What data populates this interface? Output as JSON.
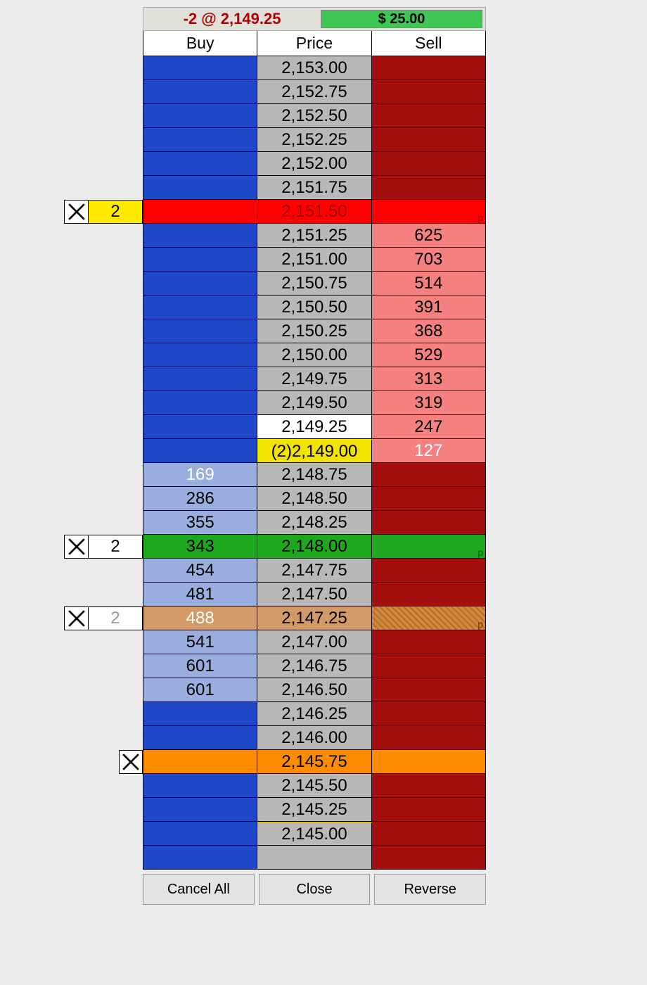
{
  "status": {
    "position_text": "-2 @ 2,149.25",
    "position_color": "#b00000",
    "pnl_text": "$ 25.00",
    "pnl_bg": "#3ec853",
    "pnl_color": "#000000"
  },
  "headers": {
    "buy": "Buy",
    "price": "Price",
    "sell": "Sell"
  },
  "palette": {
    "buy_blank": "#1f48c9",
    "buy_depth": "#99addf",
    "sell_blank": "#a30f0f",
    "sell_depth": "#f58080",
    "sell_depth_text": "#000000",
    "buy_depth_text": "#000000",
    "buy_depth_text_white": "#ffffff",
    "price_bg": "#b8b8b8",
    "price_text": "#000000",
    "stop_red": "#ff0000",
    "target_green": "#1fa71f",
    "pending_tan_buy": "#d19a66",
    "pending_tan_sell": "#d58a3a",
    "orange": "#ff8c00",
    "yellow": "#f3e400",
    "white": "#ffffff"
  },
  "rows": [
    {
      "price": "2,153.00"
    },
    {
      "price": "2,152.75"
    },
    {
      "price": "2,152.50"
    },
    {
      "price": "2,152.25"
    },
    {
      "price": "2,152.00"
    },
    {
      "price": "2,151.75"
    },
    {
      "price": "2,151.50",
      "full_row_bg": "#ff0000",
      "price_text_color": "#a00000",
      "sell_p": true,
      "sell_p_color": "#7a0000",
      "order": {
        "qty": "2",
        "qty_bg": "#ffea00",
        "qty_color": "#000"
      }
    },
    {
      "price": "2,151.25",
      "sell": "625"
    },
    {
      "price": "2,151.00",
      "sell": "703"
    },
    {
      "price": "2,150.75",
      "sell": "514"
    },
    {
      "price": "2,150.50",
      "sell": "391"
    },
    {
      "price": "2,150.25",
      "sell": "368"
    },
    {
      "price": "2,150.00",
      "sell": "529"
    },
    {
      "price": "2,149.75",
      "sell": "313"
    },
    {
      "price": "2,149.50",
      "sell": "319"
    },
    {
      "price": "2,149.25",
      "sell": "247",
      "price_bg": "#ffffff"
    },
    {
      "price": "(2)2,149.00",
      "sell": "127",
      "sell_text_color": "#ffffff",
      "price_bg": "#f3e400",
      "price_border_top": "#f3e400"
    },
    {
      "price": "2,148.75",
      "buy": "169",
      "buy_text_color": "#ffffff"
    },
    {
      "price": "2,148.50",
      "buy": "286"
    },
    {
      "price": "2,148.25",
      "buy": "355"
    },
    {
      "price": "2,148.00",
      "buy": "343",
      "full_row_bg": "#1fa71f",
      "sell_p": true,
      "sell_p_color": "#0a5a0a",
      "order": {
        "qty": "2",
        "qty_bg": "#ffffff",
        "qty_color": "#000"
      }
    },
    {
      "price": "2,147.75",
      "buy": "454"
    },
    {
      "price": "2,147.50",
      "buy": "481"
    },
    {
      "price": "2,147.25",
      "buy": "488",
      "buy_text_color": "#ffffff",
      "buy_bg": "#d19a66",
      "price_bg": "#d19a66",
      "sell_bg": "#d58a3a",
      "sell_hatch": true,
      "sell_p": true,
      "sell_p_color": "#7a3a00",
      "order": {
        "qty": "2",
        "qty_bg": "#ffffff",
        "qty_color": "#9a9a9a"
      }
    },
    {
      "price": "2,147.00",
      "buy": "541"
    },
    {
      "price": "2,146.75",
      "buy": "601"
    },
    {
      "price": "2,146.50",
      "buy": "601"
    },
    {
      "price": "2,146.25"
    },
    {
      "price": "2,146.00"
    },
    {
      "price": "2,145.75",
      "full_row_bg": "#ff8c00",
      "solo_x": true
    },
    {
      "price": "2,145.50"
    },
    {
      "price": "2,145.25"
    },
    {
      "price": "2,145.00",
      "price_border_top": "#e0c000"
    },
    {
      "price": ""
    }
  ],
  "buttons": {
    "cancel_all": "Cancel All",
    "close": "Close",
    "reverse": "Reverse"
  }
}
